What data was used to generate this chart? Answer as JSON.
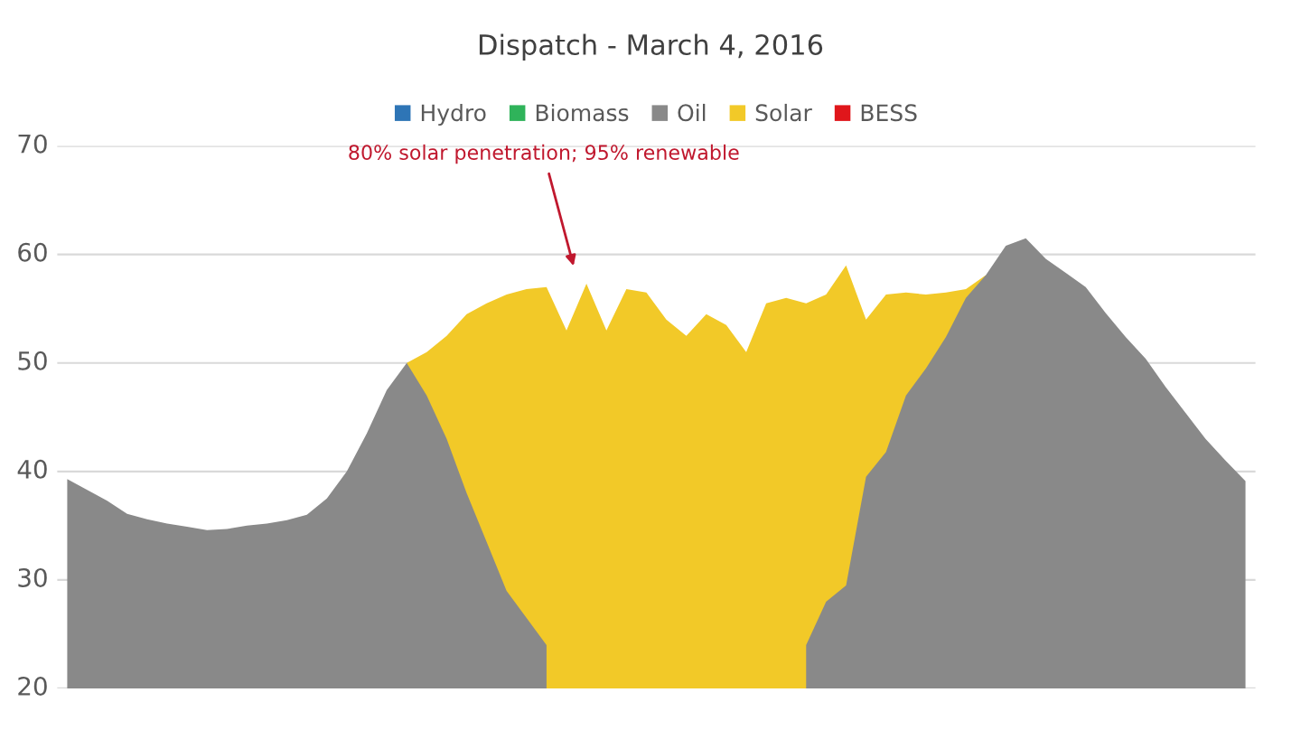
{
  "chart_data": {
    "type": "area",
    "title": "Dispatch - March 4, 2016",
    "categories": [
      null,
      null,
      null,
      null,
      null,
      null,
      null,
      null,
      null,
      null,
      null,
      null,
      null,
      null,
      null,
      null,
      null,
      null,
      null,
      null,
      null,
      null,
      null,
      null,
      null,
      null,
      null,
      null,
      null,
      null,
      null,
      null,
      null,
      null,
      null,
      null,
      null,
      null,
      null,
      null,
      null,
      null,
      null,
      null,
      null,
      null,
      null,
      null,
      null,
      null,
      null,
      null,
      null,
      null,
      null,
      null,
      null,
      null,
      null,
      null
    ],
    "series": [
      {
        "name": "Hydro",
        "color": "#2e75b6",
        "values": [
          null,
          null,
          null,
          null,
          null,
          null,
          null,
          null,
          null,
          null,
          null,
          null,
          null,
          null,
          null,
          null,
          null,
          null,
          null,
          null,
          null,
          null,
          null,
          null,
          null,
          null,
          null,
          null,
          null,
          null,
          null,
          null,
          null,
          null,
          null,
          null,
          null,
          null,
          null,
          null,
          null,
          null,
          null,
          null,
          null,
          null,
          null,
          null,
          null,
          null,
          null,
          null,
          null,
          null,
          null,
          null,
          null,
          null,
          null,
          null
        ]
      },
      {
        "name": "Biomass",
        "color": "#2fb35a",
        "values": [
          null,
          null,
          null,
          null,
          null,
          null,
          null,
          null,
          null,
          null,
          null,
          null,
          null,
          null,
          null,
          null,
          null,
          null,
          null,
          null,
          null,
          null,
          null,
          null,
          null,
          null,
          null,
          null,
          null,
          null,
          null,
          null,
          null,
          null,
          null,
          null,
          null,
          null,
          null,
          null,
          null,
          null,
          null,
          null,
          null,
          null,
          null,
          null,
          null,
          null,
          null,
          null,
          null,
          null,
          null,
          null,
          null,
          null,
          null,
          null
        ]
      },
      {
        "name": "Oil",
        "color": "#898989",
        "values": [
          39.3,
          38.3,
          37.3,
          36.1,
          35.6,
          35.2,
          34.9,
          34.6,
          34.7,
          35.0,
          35.2,
          35.5,
          36.0,
          37.5,
          40.0,
          43.5,
          47.5,
          50.0,
          47.0,
          43.0,
          38.0,
          33.5,
          29.0,
          26.5,
          24.0,
          null,
          null,
          null,
          null,
          null,
          null,
          null,
          null,
          null,
          null,
          null,
          null,
          24.0,
          28.0,
          29.5,
          39.5,
          41.8,
          47.0,
          49.5,
          52.4,
          56.0,
          58.1,
          60.8,
          61.5,
          59.6,
          58.3,
          57.0,
          54.6,
          52.4,
          50.4,
          47.8,
          45.4,
          43.0,
          41.0,
          39.1
        ]
      },
      {
        "name": "Solar",
        "color": "#f2c928",
        "values": [
          null,
          null,
          null,
          null,
          null,
          null,
          null,
          null,
          null,
          null,
          null,
          null,
          null,
          null,
          null,
          null,
          null,
          50.0,
          51.0,
          52.5,
          54.5,
          55.5,
          56.3,
          56.8,
          57.0,
          53.0,
          57.3,
          53.0,
          56.8,
          56.5,
          54.0,
          52.5,
          54.5,
          53.5,
          51.0,
          55.5,
          56.0,
          55.5,
          56.3,
          59.0,
          54.0,
          56.3,
          56.5,
          56.3,
          56.5,
          56.8,
          58.1,
          null,
          null,
          null,
          null,
          null,
          null,
          null,
          null,
          null,
          null,
          null,
          null,
          null
        ]
      },
      {
        "name": "BESS",
        "color": "#e0161b",
        "values": [
          null,
          null,
          null,
          null,
          null,
          null,
          null,
          null,
          null,
          null,
          null,
          null,
          null,
          null,
          null,
          null,
          null,
          null,
          null,
          null,
          null,
          null,
          null,
          null,
          null,
          null,
          null,
          null,
          null,
          null,
          null,
          null,
          null,
          null,
          null,
          null,
          null,
          null,
          null,
          null,
          null,
          null,
          null,
          null,
          null,
          null,
          null,
          null,
          null,
          null,
          null,
          null,
          null,
          null,
          null,
          null,
          null,
          null,
          null,
          null
        ]
      }
    ],
    "ylim": [
      20,
      70
    ],
    "yticks": [
      20,
      30,
      40,
      50,
      60,
      70
    ],
    "grid": "y",
    "legend": "top",
    "annotations": [
      "80% solar penetration; 95% renewable"
    ]
  }
}
